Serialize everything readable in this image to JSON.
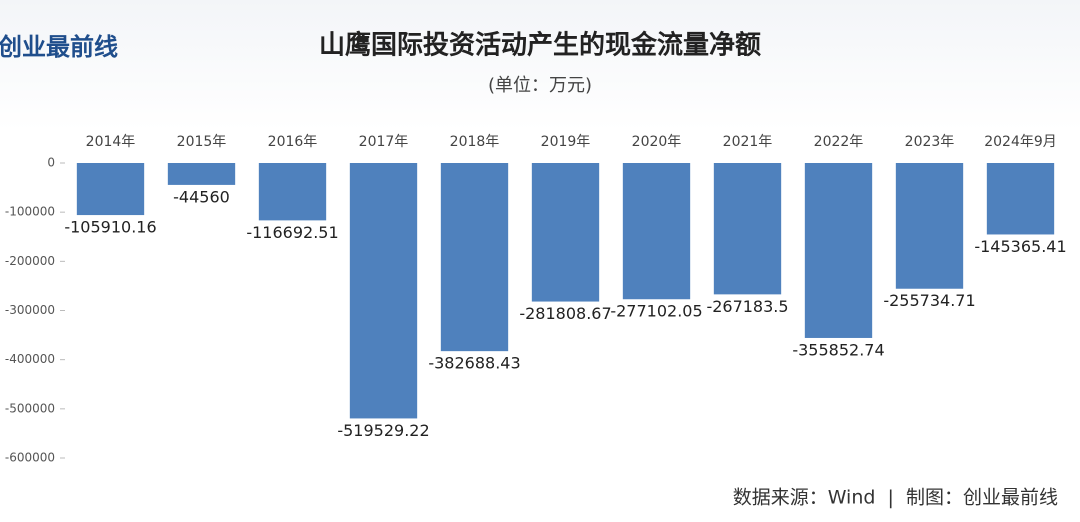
{
  "logo": "创业最前线",
  "chart_data": {
    "type": "bar",
    "title": "山鹰国际投资活动产生的现金流量净额",
    "subtitle": "(单位：万元)",
    "categories": [
      "2014年",
      "2015年",
      "2016年",
      "2017年",
      "2018年",
      "2019年",
      "2020年",
      "2021年",
      "2022年",
      "2023年",
      "2024年9月"
    ],
    "values": [
      -105910.16,
      -44560,
      -116692.51,
      -519529.22,
      -382688.43,
      -281808.67,
      -277102.05,
      -267183.5,
      -355852.74,
      -255734.71,
      -145365.41
    ],
    "color": "#4f81bd",
    "ylim": [
      -600000,
      0
    ],
    "yticks": [
      0,
      -100000,
      -200000,
      -300000,
      -400000,
      -500000,
      -600000
    ],
    "grid": false,
    "source": "数据来源：Wind  |  制图：创业最前线"
  }
}
